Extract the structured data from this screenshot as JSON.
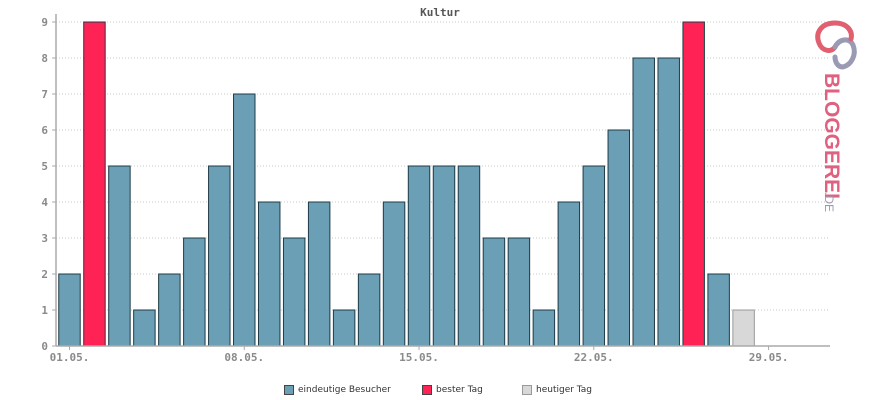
{
  "chart_data": {
    "type": "bar",
    "title": "Kultur",
    "categories": [
      "01.05.",
      "02.05.",
      "03.05.",
      "04.05.",
      "05.05.",
      "06.05.",
      "07.05.",
      "08.05.",
      "09.05.",
      "10.05.",
      "11.05.",
      "12.05.",
      "13.05.",
      "14.05.",
      "15.05.",
      "16.05.",
      "17.05.",
      "18.05.",
      "19.05.",
      "20.05.",
      "21.05.",
      "22.05.",
      "23.05.",
      "24.05.",
      "25.05.",
      "26.05.",
      "27.05.",
      "28.05.",
      "29.05.",
      "30.05.",
      "31.05."
    ],
    "x_tick_labels": [
      "01.05.",
      "08.05.",
      "15.05.",
      "22.05.",
      "29.05."
    ],
    "x_tick_indices": [
      0,
      7,
      14,
      21,
      28
    ],
    "series": [
      {
        "name": "eindeutige Besucher",
        "values": [
          2,
          9,
          5,
          1,
          2,
          3,
          5,
          7,
          4,
          3,
          4,
          1,
          2,
          4,
          5,
          5,
          5,
          3,
          3,
          1,
          4,
          5,
          6,
          8,
          8,
          9,
          2,
          1,
          0,
          0,
          0
        ]
      }
    ],
    "highlight": {
      "best_day_indices": [
        1,
        25
      ],
      "today_index": 27
    },
    "ylim": [
      0,
      9
    ],
    "yticks": [
      0,
      1,
      2,
      3,
      4,
      5,
      6,
      7,
      8,
      9
    ],
    "grid": true,
    "legend_position": "bottom-center",
    "colors": {
      "visitors": "#6a9fb5",
      "best_day": "#ff2255",
      "today": "#d8d8d8",
      "bar_stroke": "#1f3b47",
      "axis": "#aaaaaa",
      "grid": "#c8c8c8"
    }
  },
  "legend": {
    "items": [
      {
        "label": "eindeutige Besucher",
        "color": "#6a9fb5"
      },
      {
        "label": "bester Tag",
        "color": "#ff2255"
      },
      {
        "label": "heutiger Tag",
        "color": "#d8d8d8"
      }
    ]
  },
  "logo": {
    "text_main": "BLOGGEREI",
    "text_suffix": ".DE"
  }
}
